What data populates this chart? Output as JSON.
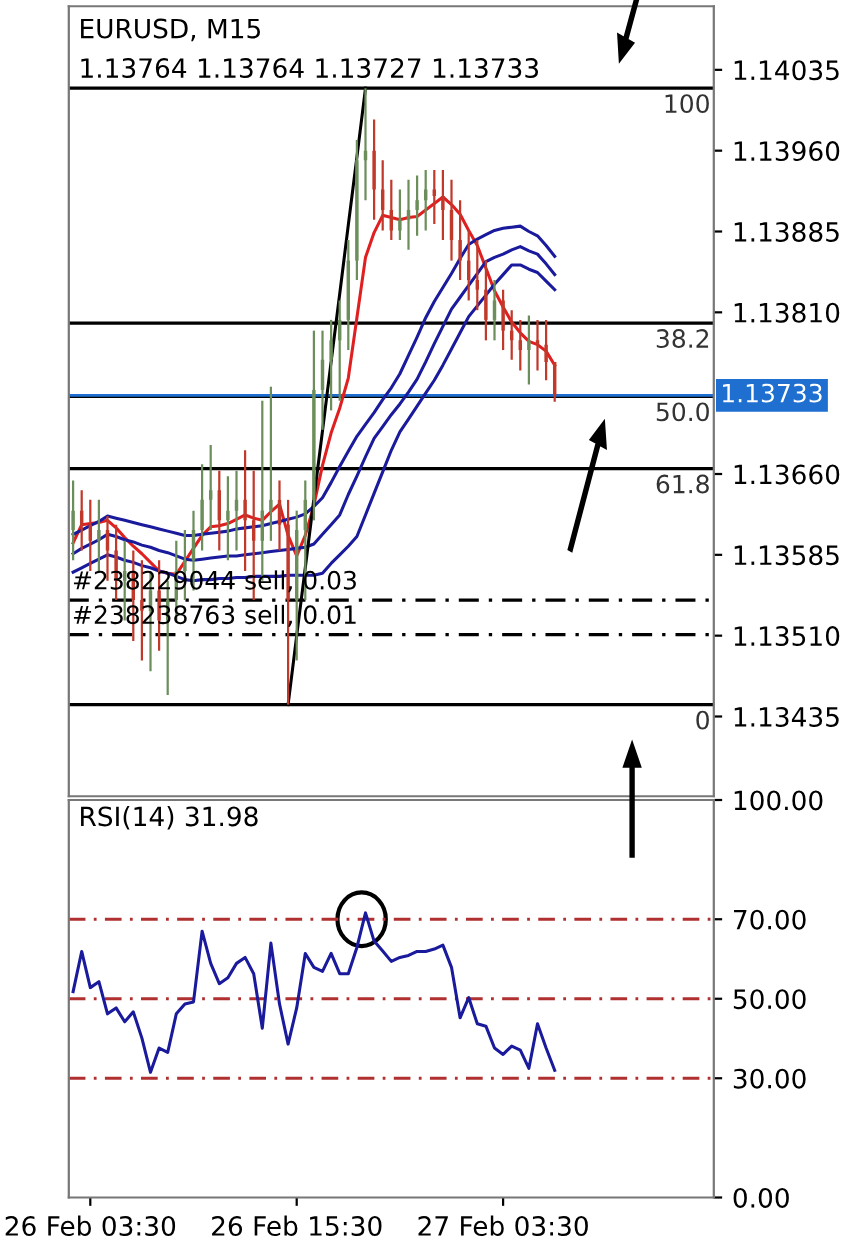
{
  "chart_data": [
    {
      "type": "candlestick",
      "title": "EURUSD, M15",
      "subtitle": "1.13764 1.13764 1.13727 1.13733",
      "categories": [
        null,
        null,
        null,
        null,
        null,
        null,
        null,
        null,
        null,
        null,
        null,
        null,
        null,
        null,
        null,
        null,
        null,
        null,
        null,
        null,
        null,
        null,
        null,
        null,
        null,
        null,
        null,
        null,
        null,
        null,
        null,
        null,
        null,
        null,
        null,
        null,
        null,
        null,
        null,
        null,
        null,
        null,
        null,
        null,
        null,
        null,
        null,
        null,
        null,
        null,
        null,
        null,
        null,
        null,
        null,
        null,
        null,
        null,
        null,
        null,
        null,
        null,
        null,
        null,
        null,
        null,
        null,
        null,
        null,
        null,
        null,
        null,
        null,
        null,
        null
      ],
      "ohlc": [
        [
          1.13608,
          1.13654,
          1.1358,
          1.13626
        ],
        [
          1.13626,
          1.13645,
          1.13589,
          1.13613
        ],
        [
          1.13613,
          1.13636,
          1.1357,
          1.13598
        ],
        [
          1.13598,
          1.13636,
          1.1357,
          1.13608
        ],
        [
          1.13608,
          1.13621,
          1.13561,
          1.13589
        ],
        [
          1.13589,
          1.13613,
          1.13543,
          1.13561
        ],
        [
          1.13561,
          1.13598,
          1.13524,
          1.1357
        ],
        [
          1.1357,
          1.13589,
          1.13505,
          1.13543
        ],
        [
          1.13543,
          1.1358,
          1.13487,
          1.13533
        ],
        [
          1.13533,
          1.1357,
          1.13477,
          1.13552
        ],
        [
          1.13552,
          1.1358,
          1.13496,
          1.13524
        ],
        [
          1.13524,
          1.13561,
          1.13455,
          1.13543
        ],
        [
          1.13543,
          1.13598,
          1.13524,
          1.1357
        ],
        [
          1.1357,
          1.13608,
          1.13543,
          1.1358
        ],
        [
          1.1358,
          1.13626,
          1.13552,
          1.13608
        ],
        [
          1.13608,
          1.13669,
          1.13589,
          1.13636
        ],
        [
          1.13636,
          1.13687,
          1.13608,
          1.13645
        ],
        [
          1.13645,
          1.13663,
          1.13589,
          1.13617
        ],
        [
          1.13617,
          1.13658,
          1.1358,
          1.13626
        ],
        [
          1.13626,
          1.13663,
          1.13589,
          1.13636
        ],
        [
          1.13636,
          1.13682,
          1.1357,
          1.13617
        ],
        [
          1.13617,
          1.13663,
          1.13543,
          1.13598
        ],
        [
          1.13598,
          1.13728,
          1.13561,
          1.13626
        ],
        [
          1.13626,
          1.13741,
          1.13598,
          1.13636
        ],
        [
          1.13636,
          1.13654,
          1.13589,
          1.13613
        ],
        [
          1.13613,
          1.13636,
          1.13446,
          1.13543
        ],
        [
          1.13543,
          1.13626,
          1.13487,
          1.13608
        ],
        [
          1.13608,
          1.13654,
          1.13543,
          1.13636
        ],
        [
          1.13636,
          1.13793,
          1.13617,
          1.13738
        ],
        [
          1.13738,
          1.13793,
          1.13701,
          1.13766
        ],
        [
          1.13766,
          1.13803,
          1.13719,
          1.13784
        ],
        [
          1.13784,
          1.13821,
          1.13728,
          1.13803
        ],
        [
          1.13803,
          1.13877,
          1.13775,
          1.13858
        ],
        [
          1.13858,
          1.1397,
          1.1384,
          1.13951
        ],
        [
          1.13951,
          1.14018,
          1.13914,
          1.1396
        ],
        [
          1.1396,
          1.13989,
          1.13896,
          1.13924
        ],
        [
          1.13924,
          1.13951,
          1.13886,
          1.13905
        ],
        [
          1.13905,
          1.13933,
          1.13877,
          1.13886
        ],
        [
          1.13886,
          1.13924,
          1.13877,
          1.13896
        ],
        [
          1.13896,
          1.13933,
          1.13868,
          1.13905
        ],
        [
          1.13905,
          1.13937,
          1.13881,
          1.13914
        ],
        [
          1.13914,
          1.13942,
          1.13886,
          1.13924
        ],
        [
          1.13924,
          1.13942,
          1.13892,
          1.13918
        ],
        [
          1.13918,
          1.13942,
          1.13877,
          1.13905
        ],
        [
          1.13905,
          1.13933,
          1.13858,
          1.13877
        ],
        [
          1.13877,
          1.13914,
          1.1384,
          1.13858
        ],
        [
          1.13858,
          1.13886,
          1.13821,
          1.1384
        ],
        [
          1.1384,
          1.13877,
          1.13812,
          1.13831
        ],
        [
          1.13831,
          1.13858,
          1.13784,
          1.13803
        ],
        [
          1.13803,
          1.1384,
          1.13784,
          1.13821
        ],
        [
          1.13821,
          1.13831,
          1.13775,
          1.13793
        ],
        [
          1.13793,
          1.13812,
          1.13766,
          1.13784
        ],
        [
          1.13784,
          1.13803,
          1.13756,
          1.13775
        ],
        [
          1.13775,
          1.13807,
          1.13743,
          1.13784
        ],
        [
          1.13784,
          1.13803,
          1.13756,
          1.1378
        ],
        [
          1.1378,
          1.13803,
          1.13747,
          1.13764
        ],
        [
          1.13764,
          1.13764,
          1.13727,
          1.13733
        ],
        null,
        null,
        null,
        null,
        null,
        null,
        null,
        null,
        null,
        null,
        null,
        null,
        null,
        null,
        null,
        null,
        null,
        null
      ],
      "colors": [
        "#6b8e5a",
        "#c0392b",
        "#c0392b",
        "#6b8e5a",
        "#c0392b",
        "#c0392b",
        "#6b8e5a",
        "#c0392b",
        "#c0392b",
        "#6b8e5a",
        "#c0392b",
        "#6b8e5a",
        "#6b8e5a",
        "#6b8e5a",
        "#6b8e5a",
        "#6b8e5a",
        "#6b8e5a",
        "#c0392b",
        "#6b8e5a",
        "#6b8e5a",
        "#c0392b",
        "#c0392b",
        "#6b8e5a",
        "#6b8e5a",
        "#c0392b",
        "#c0392b",
        "#6b8e5a",
        "#6b8e5a",
        "#6b8e5a",
        "#6b8e5a",
        "#6b8e5a",
        "#6b8e5a",
        "#6b8e5a",
        "#6b8e5a",
        "#6b8e5a",
        "#c0392b",
        "#c0392b",
        "#c0392b",
        "#6b8e5a",
        "#6b8e5a",
        "#6b8e5a",
        "#6b8e5a",
        "#c0392b",
        "#c0392b",
        "#c0392b",
        "#c0392b",
        "#c0392b",
        "#c0392b",
        "#c0392b",
        "#6b8e5a",
        "#c0392b",
        "#c0392b",
        "#c0392b",
        "#6b8e5a",
        "#c0392b",
        "#c0392b",
        "#c0392b",
        null,
        null,
        null,
        null,
        null,
        null,
        null,
        null,
        null,
        null,
        null,
        null,
        null,
        null,
        null,
        null,
        null,
        null
      ],
      "series": [
        {
          "type": "line",
          "color": "#e02020",
          "values": [
            1.13596,
            1.13613,
            1.13614,
            1.13615,
            1.13617,
            1.1361,
            1.13601,
            1.13593,
            1.13586,
            1.13578,
            1.1357,
            1.13568,
            1.13567,
            1.13579,
            1.13591,
            1.13603,
            1.13611,
            1.13612,
            1.13614,
            1.13618,
            1.13622,
            1.13619,
            1.13617,
            1.13625,
            1.13632,
            1.13603,
            1.13584,
            1.13603,
            1.13631,
            1.13668,
            1.13698,
            1.13721,
            1.13749,
            1.13805,
            1.13861,
            1.13884,
            1.139,
            1.13898,
            1.13896,
            1.13898,
            1.13899,
            1.13905,
            1.13911,
            1.13917,
            1.1391,
            1.13901,
            1.13886,
            1.13872,
            1.13851,
            1.1383,
            1.13815,
            1.13801,
            1.13791,
            1.13783,
            1.1378,
            1.13774,
            1.13761,
            null,
            null,
            null,
            null,
            null,
            null,
            null,
            null,
            null,
            null,
            null,
            null,
            null,
            null,
            null,
            null,
            null,
            null
          ]
        },
        {
          "type": "line",
          "color": "#1a1a9c",
          "values": [
            1.13604,
            1.13608,
            1.13612,
            1.13616,
            1.13621,
            1.13619,
            1.13617,
            1.13615,
            1.13613,
            1.13611,
            1.13609,
            1.13607,
            1.13605,
            1.13603,
            1.13603,
            1.13604,
            1.13605,
            1.13606,
            1.13607,
            1.13609,
            1.1361,
            1.13611,
            1.13612,
            1.13614,
            1.13616,
            1.13618,
            1.1362,
            1.13623,
            1.1363,
            1.13638,
            1.13652,
            1.13667,
            1.13681,
            1.13695,
            1.13706,
            1.13717,
            1.13729,
            1.1374,
            1.13753,
            1.1377,
            1.13787,
            1.13805,
            1.1382,
            1.13833,
            1.13846,
            1.1386,
            1.13873,
            1.13878,
            1.13882,
            1.13886,
            1.13888,
            1.13889,
            1.1389,
            1.13885,
            1.13881,
            1.13872,
            1.13862,
            null,
            null,
            null,
            null,
            null,
            null,
            null,
            null,
            null,
            null,
            null,
            null,
            null,
            null,
            null,
            null,
            null,
            null
          ]
        },
        {
          "type": "line",
          "color": "#1a1a9c",
          "values": [
            1.13586,
            1.13591,
            1.13595,
            1.13599,
            1.13604,
            1.13602,
            1.13599,
            1.13597,
            1.13594,
            1.13592,
            1.13589,
            1.13587,
            1.13584,
            1.13581,
            1.1358,
            1.13581,
            1.13582,
            1.13583,
            1.13584,
            1.13584,
            1.13585,
            1.13586,
            1.13587,
            1.13588,
            1.13589,
            1.1359,
            1.13591,
            1.13592,
            1.13595,
            1.13604,
            1.13613,
            1.13622,
            1.13641,
            1.13658,
            1.13676,
            1.13693,
            1.13704,
            1.13715,
            1.13725,
            1.13736,
            1.13748,
            1.13764,
            1.13781,
            1.13797,
            1.13813,
            1.13824,
            1.13835,
            1.13846,
            1.13857,
            1.13861,
            1.13864,
            1.13868,
            1.13871,
            1.13867,
            1.13864,
            1.13855,
            1.13845,
            null,
            null,
            null,
            null,
            null,
            null,
            null,
            null,
            null,
            null,
            null,
            null,
            null,
            null,
            null,
            null,
            null,
            null
          ]
        },
        {
          "type": "line",
          "color": "#1a1a9c",
          "values": [
            1.13569,
            1.13573,
            1.13577,
            1.13581,
            1.13585,
            1.13583,
            1.1358,
            1.13578,
            1.13575,
            1.13573,
            1.1357,
            1.13568,
            1.13565,
            1.13562,
            1.13561,
            1.13562,
            1.13562,
            1.13563,
            1.13563,
            1.13564,
            1.13564,
            1.13565,
            1.13565,
            1.13565,
            1.13565,
            1.13566,
            1.13566,
            1.13566,
            1.13566,
            1.13568,
            1.13577,
            1.13585,
            1.13593,
            1.13602,
            1.13622,
            1.13642,
            1.13662,
            1.13682,
            1.13699,
            1.13711,
            1.13723,
            1.13735,
            1.13747,
            1.13761,
            1.13776,
            1.13791,
            1.13806,
            1.13816,
            1.13826,
            1.13836,
            1.13845,
            1.13854,
            1.13854,
            1.1385,
            1.13847,
            1.13839,
            1.13831,
            null,
            null,
            null,
            null,
            null,
            null,
            null,
            null,
            null,
            null,
            null,
            null,
            null,
            null,
            null,
            null,
            null,
            null
          ]
        },
        {
          "type": "line",
          "color": "#000000",
          "values": [
            null,
            null,
            null,
            null,
            null,
            null,
            null,
            null,
            null,
            null,
            null,
            null,
            null,
            null,
            null,
            null,
            null,
            null,
            null,
            null,
            null,
            null,
            null,
            null,
            null,
            1.13446,
            1.1351,
            1.13573,
            1.13637,
            1.137,
            1.13764,
            1.13827,
            1.13891,
            1.13954,
            1.14018,
            null,
            null,
            null,
            null,
            null,
            null,
            null,
            null,
            null,
            null,
            null,
            null,
            null,
            null,
            null,
            null,
            null,
            null,
            null,
            null,
            null,
            null,
            null,
            null,
            null,
            null,
            null,
            null,
            null,
            null,
            null,
            null,
            null,
            null,
            null,
            null,
            null,
            null,
            null,
            null
          ]
        }
      ],
      "ref_lines": [
        {
          "axis": "y",
          "value": 1.14018
        },
        {
          "axis": "y",
          "value": 1.138
        },
        {
          "axis": "y",
          "value": 1.13732
        },
        {
          "axis": "y",
          "value": 1.13665
        },
        {
          "axis": "y",
          "value": 1.13446
        },
        {
          "axis": "y",
          "value": 1.13733,
          "label": "1.13733",
          "color": "#1e6fd0"
        },
        {
          "axis": "y",
          "value": 1.13543,
          "label": "#238229044 sell, 0.03",
          "line_style": "dashed"
        },
        {
          "axis": "y",
          "value": 1.13511,
          "label": "#238238763 sell, 0.01",
          "line_style": "dashed"
        }
      ],
      "annotations": [
        "100",
        "38.2",
        "50.0",
        "61.8",
        "0"
      ],
      "ylim": [
        1.13361,
        1.14094
      ],
      "yticks": [
        {
          "value": 1.14035,
          "label": "1.14035"
        },
        {
          "value": 1.1396,
          "label": "1.13960"
        },
        {
          "value": 1.13885,
          "label": "1.13885"
        },
        {
          "value": 1.1381,
          "label": "1.13810"
        },
        {
          "value": 1.1366,
          "label": "1.13660"
        },
        {
          "value": 1.13585,
          "label": "1.13585"
        },
        {
          "value": 1.1351,
          "label": "1.13510"
        },
        {
          "value": 1.13435,
          "label": "1.13435"
        }
      ],
      "tick_labels": "y"
    },
    {
      "type": "line",
      "title": "RSI(14) 31.98",
      "categories": [
        null,
        null,
        "26 Feb 03:30",
        null,
        null,
        null,
        null,
        null,
        null,
        null,
        null,
        null,
        null,
        null,
        null,
        null,
        null,
        null,
        null,
        null,
        null,
        null,
        null,
        null,
        null,
        null,
        "26 Feb 15:30",
        null,
        null,
        null,
        null,
        null,
        null,
        null,
        null,
        null,
        null,
        null,
        null,
        null,
        null,
        null,
        null,
        null,
        null,
        null,
        null,
        null,
        null,
        null,
        "27 Feb 03:30",
        null,
        null,
        null,
        null,
        null,
        null,
        null,
        null,
        null,
        null,
        null,
        null,
        null,
        null,
        null,
        null,
        null,
        null,
        null,
        null,
        null,
        null,
        null,
        null
      ],
      "series": [
        {
          "color": "#1a1a9c",
          "values": [
            51.8,
            61.9,
            52.8,
            54.3,
            46.2,
            47.7,
            44.2,
            46.7,
            40.1,
            31.5,
            37.6,
            36.5,
            46.2,
            48.7,
            49.2,
            67.0,
            58.9,
            53.8,
            55.3,
            58.9,
            60.4,
            56.3,
            42.6,
            64.0,
            48.7,
            38.6,
            47.7,
            61.4,
            57.9,
            56.9,
            61.4,
            56.3,
            56.3,
            62.9,
            71.6,
            64.5,
            62.0,
            59.4,
            60.4,
            60.9,
            61.9,
            61.9,
            62.5,
            63.5,
            57.9,
            45.2,
            50.3,
            43.7,
            43.1,
            37.6,
            36.0,
            38.1,
            37.1,
            32.5,
            43.7,
            37.6,
            32.0,
            null,
            null,
            null,
            null,
            null,
            null,
            null,
            null,
            null,
            null,
            null,
            null,
            null,
            null,
            null,
            null,
            null,
            null
          ]
        }
      ],
      "ref_lines": [
        {
          "axis": "y",
          "value": 70,
          "color": "#b03030",
          "line_style": "dashed"
        },
        {
          "axis": "y",
          "value": 50,
          "color": "#b03030",
          "line_style": "dashed"
        },
        {
          "axis": "y",
          "value": 30,
          "color": "#b03030",
          "line_style": "dashed"
        }
      ],
      "ylim": [
        0,
        100
      ],
      "yticks": [
        {
          "value": 100,
          "label": "100.00"
        },
        {
          "value": 70,
          "label": "70.00"
        },
        {
          "value": 50,
          "label": "50.00"
        },
        {
          "value": 30,
          "label": "30.00"
        },
        {
          "value": 0,
          "label": "0.00"
        }
      ]
    }
  ]
}
